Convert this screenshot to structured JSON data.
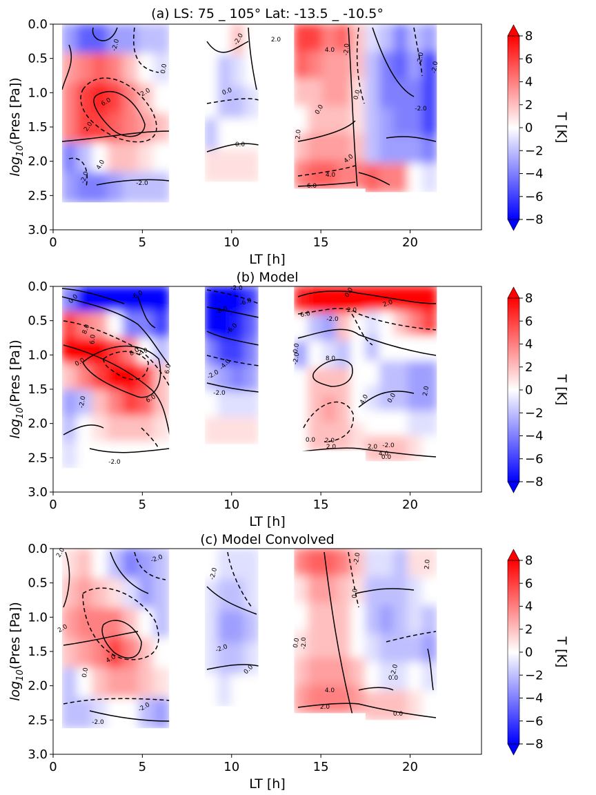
{
  "chart_data": [
    {
      "type": "heatmap",
      "panel": "a",
      "title": "(a) LS: 75 _ 105°   Lat: -13.5 _ -10.5°",
      "xlabel": "LT [h]",
      "ylabel_prefix": "log",
      "ylabel_sub": "10",
      "ylabel_suffix": "(Pres [Pa])",
      "xlim": [
        0,
        24
      ],
      "ylim": [
        3.0,
        0.0
      ],
      "xticks": [
        "0",
        "5",
        "10",
        "15",
        "20"
      ],
      "yticks": [
        "0.0",
        "0.5",
        "1.0",
        "1.5",
        "2.0",
        "2.5",
        "3.0"
      ],
      "colorbar": {
        "label": "T [K]",
        "range": [
          -8,
          8
        ],
        "ticks": [
          "8",
          "6",
          "4",
          "2",
          "0",
          "−2",
          "−4",
          "−6",
          "−8"
        ],
        "colormap": "bwr"
      },
      "blocks": [
        {
          "x": [
            0.5,
            6.5
          ],
          "ybot": 2.6,
          "cells": [
            [
              -3,
              -5,
              -5,
              -3,
              -3,
              -2,
              -2
            ],
            [
              3,
              4,
              5,
              4,
              2,
              0,
              -1
            ],
            [
              4,
              6,
              7,
              6,
              4,
              2,
              0
            ],
            [
              4,
              6,
              6,
              5,
              4,
              3,
              2
            ],
            [
              -4,
              -2,
              0,
              2,
              2,
              1,
              0
            ],
            [
              -3,
              -4,
              -4,
              -3,
              -2,
              -2,
              -2
            ]
          ]
        },
        {
          "x": [
            8.5,
            11.5
          ],
          "ybot": 2.3,
          "cells": [
            [
              0,
              0,
              2,
              0
            ],
            [
              0,
              -2,
              -1,
              0
            ],
            [
              0,
              -2,
              -2,
              -1
            ],
            [
              -2,
              0,
              0,
              0
            ],
            [
              1,
              1,
              1,
              1
            ]
          ]
        },
        {
          "x": [
            13.5,
            17.5
          ],
          "ybot": 2.4,
          "cells": [
            [
              6,
              6,
              4,
              5,
              2
            ],
            [
              5,
              4,
              3,
              3,
              2
            ],
            [
              2,
              2,
              3,
              3,
              1
            ],
            [
              0,
              2,
              2,
              2,
              1
            ],
            [
              2,
              3,
              3,
              3,
              2
            ],
            [
              4,
              5,
              5,
              4,
              4
            ]
          ]
        },
        {
          "x": [
            17.5,
            21.5
          ],
          "ybot": 2.45,
          "cells": [
            [
              -1,
              -2,
              -4,
              -2,
              -3
            ],
            [
              -2,
              -4,
              -5,
              -3,
              -6
            ],
            [
              -2,
              -4,
              -4,
              -4,
              -6
            ],
            [
              -2,
              -3,
              -4,
              -4,
              -6
            ],
            [
              -2,
              -3,
              -3,
              -3,
              -4
            ],
            [
              5,
              4,
              4,
              0,
              -1
            ]
          ]
        }
      ],
      "contour_labels": [
        "-2.0",
        "-2.0",
        "0.0",
        "2.0",
        "6.0",
        "2.0",
        "4.0",
        "-2.0",
        "0.0",
        "-2.0",
        "-2.0",
        "0.0",
        "-2.0",
        "4.0",
        "4.0",
        "2.0",
        "0.0",
        "2.0",
        "4.0",
        "6.0",
        "-2.0",
        "0.0",
        "-2.0"
      ]
    },
    {
      "type": "heatmap",
      "panel": "b",
      "title": "(b) Model",
      "xlabel": "LT [h]",
      "ylabel_prefix": "log",
      "ylabel_sub": "10",
      "ylabel_suffix": "(Pres [Pa])",
      "xlim": [
        0,
        24
      ],
      "ylim": [
        3.0,
        0.0
      ],
      "xticks": [
        "0",
        "5",
        "10",
        "15",
        "20"
      ],
      "yticks": [
        "0.0",
        "0.5",
        "1.0",
        "1.5",
        "2.0",
        "2.5",
        "3.0"
      ],
      "colorbar": {
        "label": "T [K]",
        "range": [
          -8,
          8
        ],
        "ticks": [
          "8",
          "6",
          "4",
          "2",
          "0",
          "−2",
          "−4",
          "−6",
          "−8"
        ],
        "colormap": "bwr"
      },
      "blocks": [
        {
          "x": [
            0.5,
            6.5
          ],
          "ybot": 2.65,
          "cells": [
            [
              -4,
              -8,
              -9,
              -8,
              -9,
              -9,
              -9
            ],
            [
              6,
              4,
              3,
              0,
              -4,
              -4,
              -6
            ],
            [
              8,
              9,
              8,
              6,
              4,
              0,
              -2
            ],
            [
              2,
              4,
              6,
              8,
              8,
              6,
              2
            ],
            [
              -3,
              -2,
              2,
              4,
              6,
              5,
              2
            ],
            [
              -2,
              0,
              1,
              2,
              2,
              2,
              1
            ],
            [
              -1,
              0,
              0,
              0,
              0,
              0,
              0
            ]
          ]
        },
        {
          "x": [
            8.5,
            11.5
          ],
          "ybot": 2.3,
          "cells": [
            [
              -8,
              -9,
              -8,
              -6
            ],
            [
              -8,
              -8,
              -7,
              -5
            ],
            [
              -4,
              -6,
              -6,
              -4
            ],
            [
              -2,
              -3,
              -4,
              -3
            ],
            [
              0,
              -1,
              -1,
              -1
            ],
            [
              1,
              1,
              1,
              1
            ]
          ]
        },
        {
          "x": [
            13.5,
            17.5
          ],
          "ybot": 2.4,
          "cells": [
            [
              7,
              8,
              9,
              8,
              9
            ],
            [
              0,
              -2,
              -3,
              2,
              0
            ],
            [
              -3,
              0,
              -1,
              -2,
              0
            ],
            [
              0,
              2,
              2,
              2,
              0
            ],
            [
              0,
              2,
              3,
              2,
              0
            ],
            [
              0,
              2,
              2,
              2,
              1
            ]
          ]
        },
        {
          "x": [
            17.5,
            21.5
          ],
          "ybot": 2.55,
          "cells": [
            [
              9,
              8,
              8,
              8,
              9
            ],
            [
              -1,
              0,
              2,
              4,
              6
            ],
            [
              -2,
              0,
              0,
              0,
              0
            ],
            [
              0,
              -2,
              -2,
              -3,
              -3
            ],
            [
              -1,
              -2,
              -2,
              -3,
              -3
            ],
            [
              0,
              0,
              0,
              -1,
              -1
            ],
            [
              2,
              2,
              2,
              1,
              0
            ]
          ]
        }
      ],
      "contour_labels": [
        "0.0",
        "-6.0",
        "8.0",
        "6.0",
        "0.0",
        "8.0",
        "6.0",
        "2.0",
        "6.0",
        "-2.0",
        "-2.0",
        "-6.0",
        "-2.0",
        "-8.0",
        "-6.0",
        "-2.0",
        "-4.0",
        "-2.0",
        "0.0",
        "8.0",
        "2.0",
        "2.0",
        "6.0",
        "-2.0",
        "0.0",
        "-2.0",
        "2.0",
        "4.0",
        "0.0",
        "2.0",
        "4.0",
        "-2.0",
        "0.0",
        "2.0",
        "2.0",
        "0.0"
      ]
    },
    {
      "type": "heatmap",
      "panel": "c",
      "title": "(c) Model Convolved",
      "xlabel": "LT [h]",
      "ylabel_prefix": "log",
      "ylabel_sub": "10",
      "ylabel_suffix": "(Pres [Pa])",
      "xlim": [
        0,
        24
      ],
      "ylim": [
        3.0,
        0.0
      ],
      "xticks": [
        "0",
        "5",
        "10",
        "15",
        "20"
      ],
      "yticks": [
        "0.0",
        "0.5",
        "1.0",
        "1.5",
        "2.0",
        "2.5",
        "3.0"
      ],
      "colorbar": {
        "label": "T [K]",
        "range": [
          -8,
          8
        ],
        "ticks": [
          "8",
          "6",
          "4",
          "2",
          "0",
          "−2",
          "−4",
          "−6",
          "−8"
        ],
        "colormap": "bwr"
      },
      "blocks": [
        {
          "x": [
            0.5,
            6.5
          ],
          "ybot": 2.62,
          "cells": [
            [
              1,
              2,
              0,
              -2,
              -4,
              -3,
              -2
            ],
            [
              2,
              3,
              2,
              1,
              -1,
              -3,
              -2
            ],
            [
              3,
              4,
              4,
              4,
              2,
              0,
              -2
            ],
            [
              2,
              3,
              4,
              6,
              4,
              2,
              0
            ],
            [
              -2,
              0,
              2,
              3,
              3,
              2,
              1
            ],
            [
              -2,
              -2,
              -1,
              0,
              0,
              -2,
              -3
            ]
          ]
        },
        {
          "x": [
            8.5,
            11.5
          ],
          "ybot": 2.3,
          "cells": [
            [
              0,
              -1,
              -1,
              -1
            ],
            [
              -1,
              -2,
              -2,
              -1
            ],
            [
              -1,
              -3,
              -3,
              -2
            ],
            [
              -1,
              -2,
              -2,
              -1
            ],
            [
              0,
              -1,
              0,
              0
            ]
          ]
        },
        {
          "x": [
            13.5,
            17.5
          ],
          "ybot": 2.4,
          "cells": [
            [
              4,
              5,
              5,
              4,
              2
            ],
            [
              1,
              3,
              3,
              2,
              1
            ],
            [
              0,
              2,
              2,
              2,
              0
            ],
            [
              1,
              2,
              2,
              2,
              0
            ],
            [
              2,
              3,
              3,
              3,
              2
            ],
            [
              3,
              4,
              4,
              4,
              3
            ]
          ]
        },
        {
          "x": [
            17.5,
            21.5
          ],
          "ybot": 2.5,
          "cells": [
            [
              -1,
              -1,
              -2,
              1,
              1
            ],
            [
              -2,
              -2,
              -2,
              -1,
              0
            ],
            [
              -2,
              -3,
              -2,
              -1,
              -2
            ],
            [
              -1,
              -2,
              -2,
              -2,
              -3
            ],
            [
              0,
              -1,
              -1,
              0,
              -1
            ],
            [
              2,
              2,
              2,
              1,
              0
            ]
          ]
        }
      ],
      "contour_labels": [
        "2.0",
        "2.0",
        "4.0",
        "0.0",
        "-2.0",
        "-2.0",
        "-2.0",
        "-2.0",
        "-2.0",
        "0.0",
        "-2.0",
        "0.0",
        "0.0",
        "-2.0",
        "2.0",
        "4.0",
        "2.0",
        "0.0",
        "-2.0",
        "0.0"
      ]
    }
  ]
}
